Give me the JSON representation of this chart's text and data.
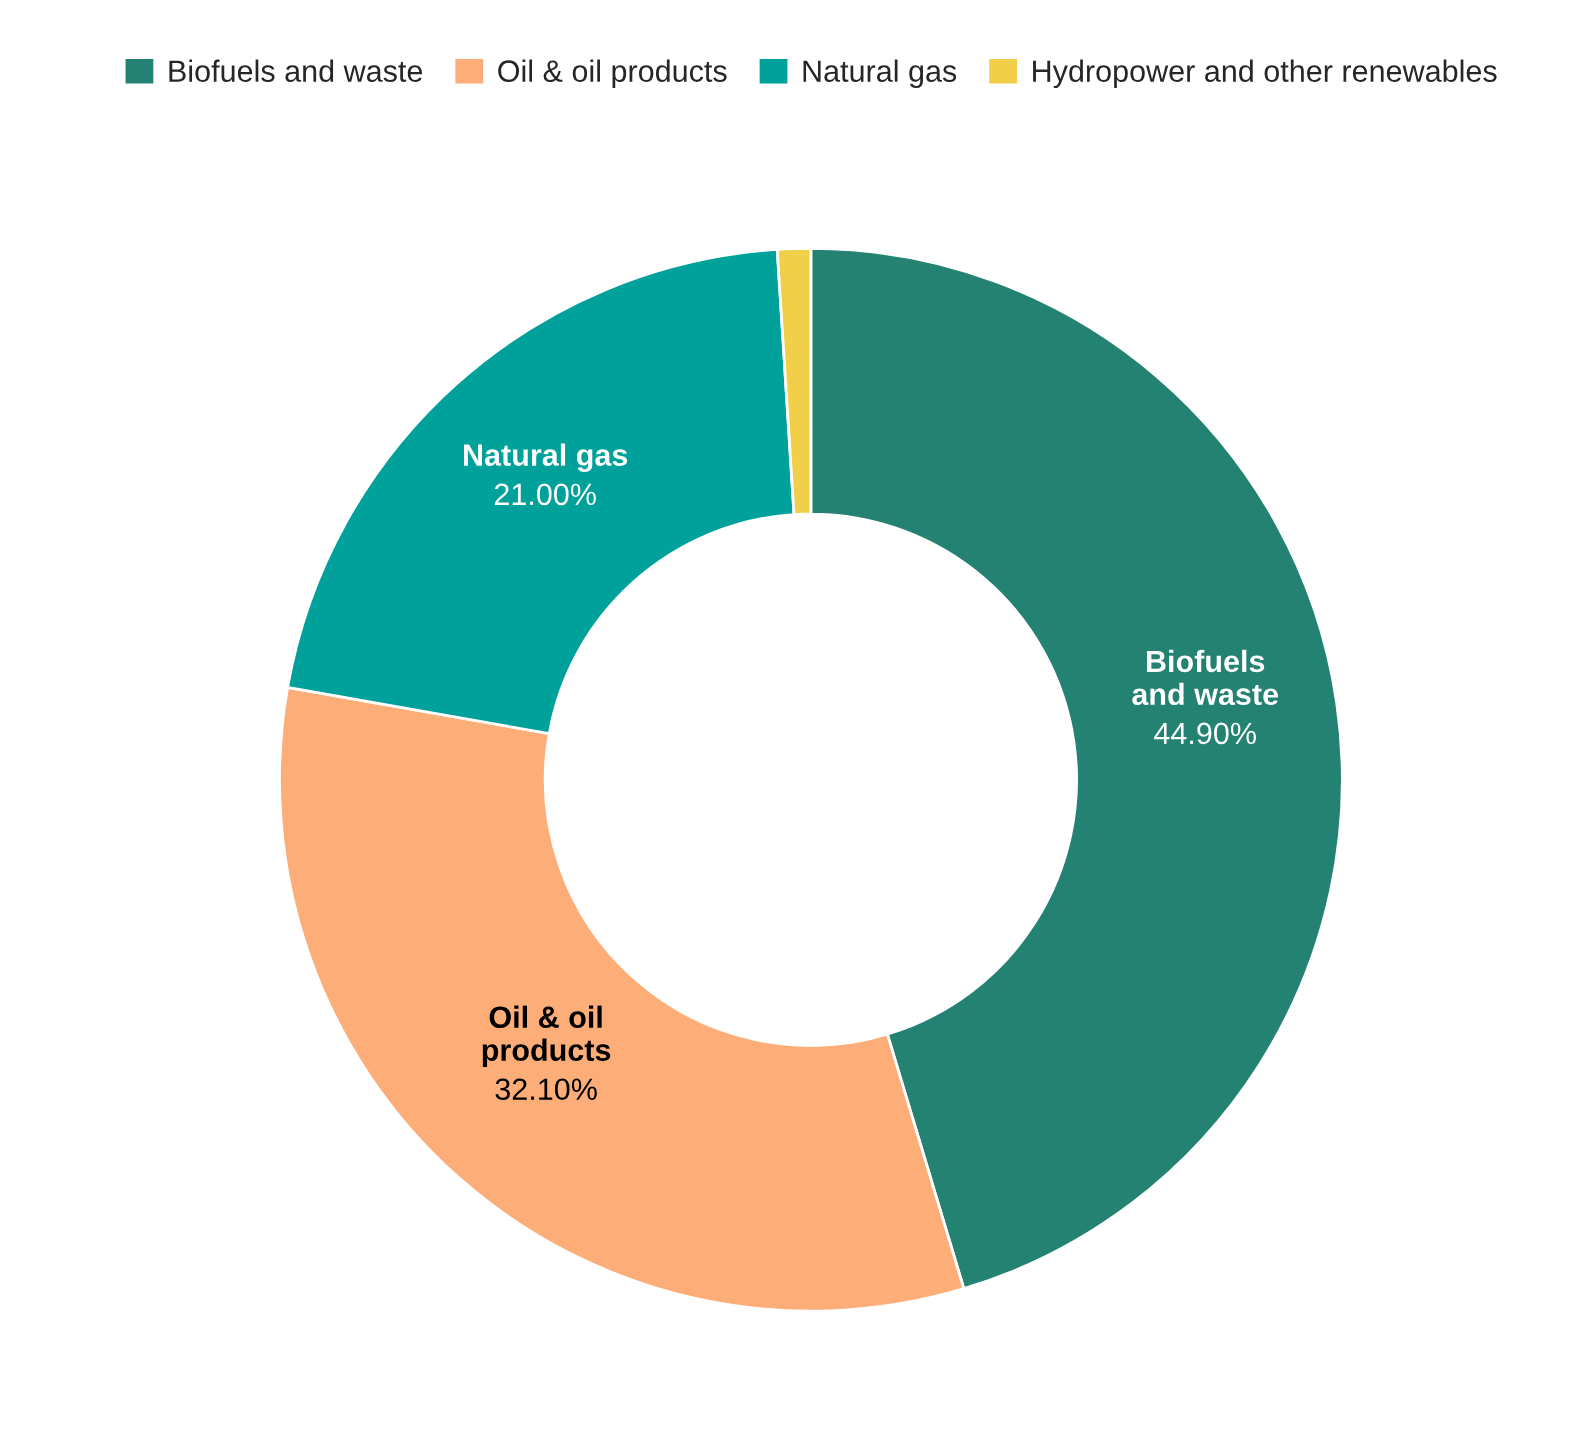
{
  "chart_data": {
    "type": "donut",
    "categories": [
      "Biofuels and waste",
      "Oil & oil products",
      "Natural gas",
      "Hydropower and other renewables"
    ],
    "values": [
      44.9,
      32.1,
      21.0,
      1.0
    ],
    "colors": [
      "#238272",
      "#fdad78",
      "#00a19b",
      "#f1cf48"
    ],
    "value_labels": [
      "44.90%",
      "32.10%",
      "21.00%",
      null
    ],
    "legend": "top"
  }
}
